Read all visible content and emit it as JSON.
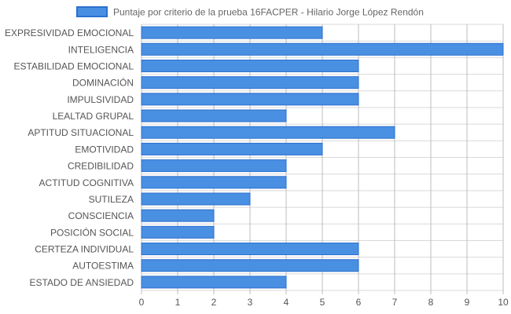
{
  "chart_data": {
    "type": "bar",
    "orientation": "horizontal",
    "categories": [
      "EXPRESIVIDAD EMOCIONAL",
      "INTELIGENCIA",
      "ESTABILIDAD EMOCIONAL",
      "DOMINACIÓN",
      "IMPULSIVIDAD",
      "LEALTAD GRUPAL",
      "APTITUD SITUACIONAL",
      "EMOTIVIDAD",
      "CREDIBILIDAD",
      "ACTITUD COGNITIVA",
      "SUTILEZA",
      "CONSCIENCIA",
      "POSICIÓN SOCIAL",
      "CERTEZA INDIVIDUAL",
      "AUTOESTIMA",
      "ESTADO DE ANSIEDAD"
    ],
    "series": [
      {
        "name": "Puntaje por criterio de la prueba 16FACPER - Hilario Jorge López Rendón",
        "values": [
          5,
          10,
          6,
          6,
          6,
          4,
          7,
          5,
          4,
          4,
          3,
          2,
          2,
          6,
          6,
          4
        ]
      }
    ],
    "xlim": [
      0,
      10
    ],
    "xticks": [
      "0",
      "1",
      "2",
      "3",
      "4",
      "5",
      "6",
      "7",
      "8",
      "9",
      "10"
    ],
    "grid": true,
    "legend_position": "top",
    "colors": {
      "bar_fill": "#4a90e2",
      "bar_stroke": "#2a6fd0"
    }
  }
}
